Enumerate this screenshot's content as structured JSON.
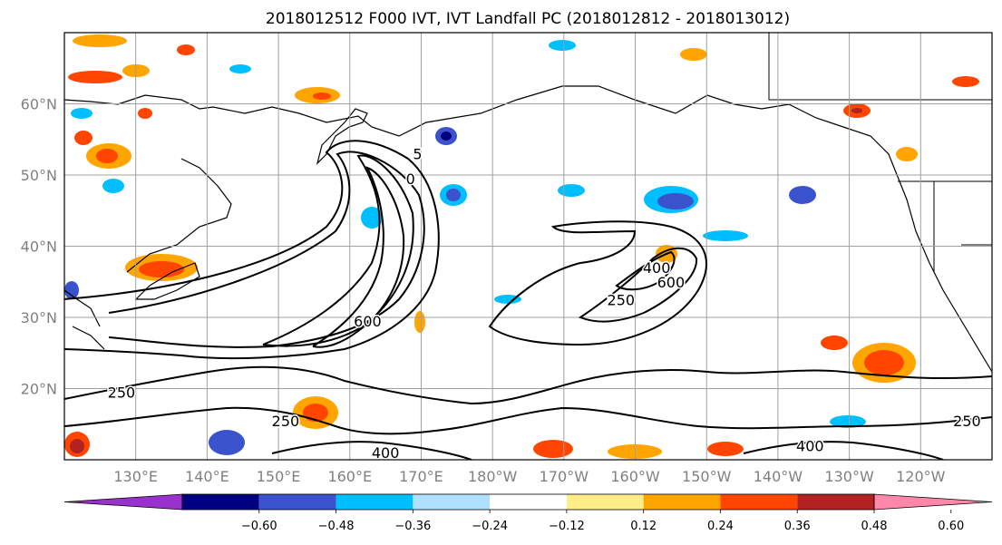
{
  "figure": {
    "title": "2018012512 F000 IVT, IVT Landfall PC (2018012812 - 2018013012)"
  },
  "map": {
    "lon_range": [
      120,
      250
    ],
    "lat_range": [
      10,
      70
    ],
    "lon_ticks": [
      {
        "lon": 130,
        "label": "130°E"
      },
      {
        "lon": 140,
        "label": "140°E"
      },
      {
        "lon": 150,
        "label": "150°E"
      },
      {
        "lon": 160,
        "label": "160°E"
      },
      {
        "lon": 170,
        "label": "170°E"
      },
      {
        "lon": 180,
        "label": "180°W"
      },
      {
        "lon": 190,
        "label": "170°W"
      },
      {
        "lon": 200,
        "label": "160°W"
      },
      {
        "lon": 210,
        "label": "150°W"
      },
      {
        "lon": 220,
        "label": "140°W"
      },
      {
        "lon": 230,
        "label": "130°W"
      },
      {
        "lon": 240,
        "label": "120°W"
      }
    ],
    "lat_ticks": [
      {
        "lat": 20,
        "label": "20°N"
      },
      {
        "lat": 30,
        "label": "30°N"
      },
      {
        "lat": 40,
        "label": "40°N"
      },
      {
        "lat": 50,
        "label": "50°N"
      },
      {
        "lat": 60,
        "label": "60°N"
      }
    ],
    "grid": true,
    "contour_labels": [
      {
        "text": "250",
        "lon": 128,
        "lat": 19.5
      },
      {
        "text": "250",
        "lon": 151,
        "lat": 15.5
      },
      {
        "text": "400",
        "lon": 165,
        "lat": 11.0
      },
      {
        "text": "600",
        "lon": 162.5,
        "lat": 29.5
      },
      {
        "text": "250",
        "lon": 198,
        "lat": 32.5
      },
      {
        "text": "600",
        "lon": 205,
        "lat": 35.0
      },
      {
        "text": "400",
        "lon": 203,
        "lat": 37.0
      },
      {
        "text": "400",
        "lon": 224.5,
        "lat": 12.0
      },
      {
        "text": "250",
        "lon": 246.5,
        "lat": 15.5
      },
      {
        "text": "5",
        "lon": 169.5,
        "lat": 53.0
      },
      {
        "text": "0",
        "lon": 168.5,
        "lat": 49.5
      }
    ],
    "colors": {
      "ocean": "#ffffff",
      "coast": "#000000",
      "grid": "#a0a0a0",
      "contour": "#000000"
    }
  },
  "colorbar": {
    "levels": [
      "−0.60",
      "−0.48",
      "−0.36",
      "−0.24",
      "−0.12",
      "0.12",
      "0.24",
      "0.36",
      "0.48",
      "0.60"
    ],
    "colors": [
      "#9932cc",
      "#000080",
      "#3a53cc",
      "#00bfff",
      "#b0e0ff",
      "#ffffff",
      "#ffee88",
      "#ffa500",
      "#ff4500",
      "#b22222",
      "#ff88aa"
    ]
  }
}
